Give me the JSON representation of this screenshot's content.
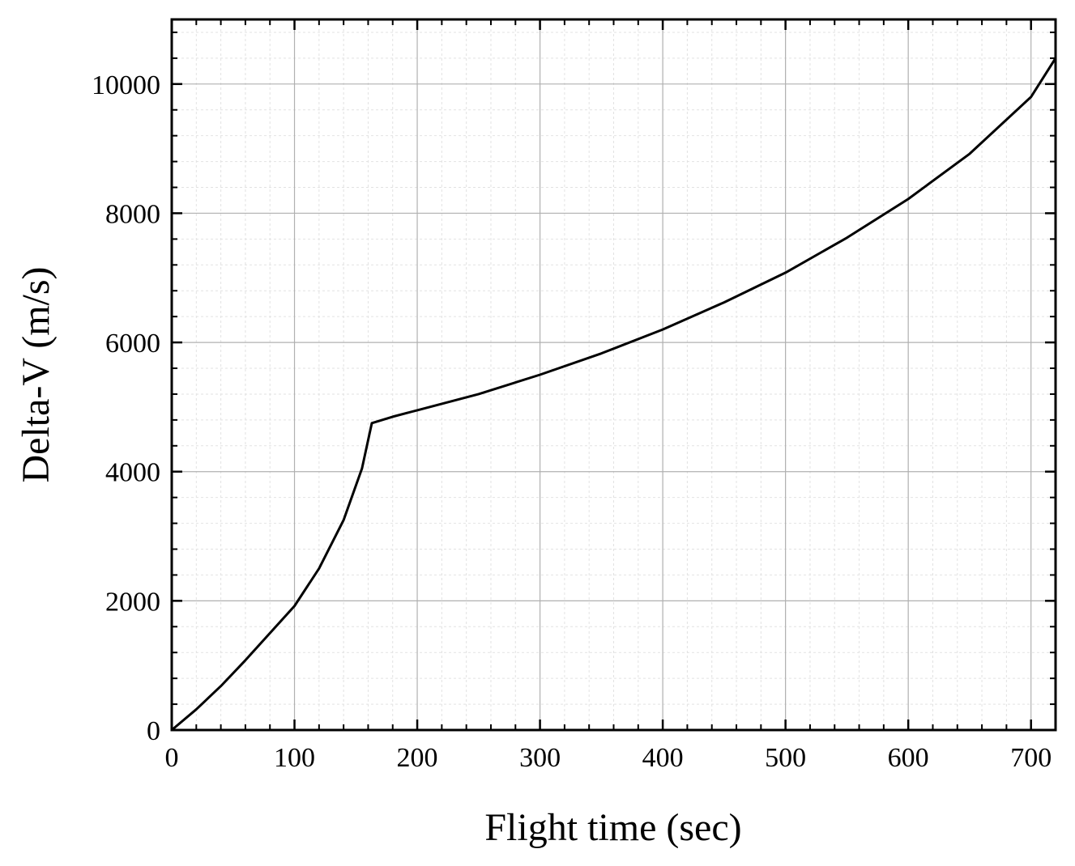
{
  "chart_data": {
    "type": "line",
    "x_label": "Flight time (sec)",
    "y_label": "Delta-V (m/s)",
    "x": [
      0,
      20,
      40,
      60,
      80,
      100,
      120,
      140,
      155,
      163,
      180,
      200,
      250,
      300,
      350,
      400,
      450,
      500,
      550,
      600,
      650,
      700,
      720
    ],
    "series": [
      {
        "name": "Delta-V",
        "color": "#000000",
        "values": [
          0,
          320,
          680,
          1080,
          1500,
          1920,
          2500,
          3250,
          4050,
          4750,
          4850,
          4950,
          5200,
          5500,
          5830,
          6200,
          6620,
          7080,
          7620,
          8220,
          8920,
          9800,
          10400
        ]
      }
    ],
    "xlim": [
      0,
      720
    ],
    "xticks": [
      0,
      100,
      200,
      300,
      400,
      500,
      600,
      700
    ],
    "ylim": [
      0,
      11000
    ],
    "yticks": [
      0,
      2000,
      4000,
      6000,
      8000,
      10000
    ],
    "grid": true
  }
}
